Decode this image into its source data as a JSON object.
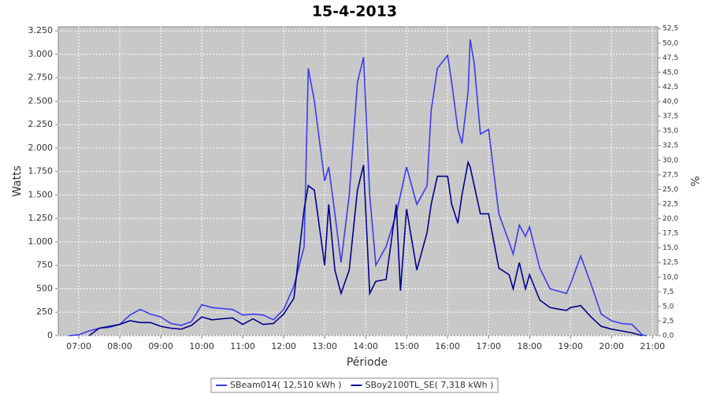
{
  "chart_data": {
    "type": "line",
    "title": "15-4-2013",
    "x_label": "Période",
    "y_label": "Watts",
    "y2_label": "%",
    "x": [
      6.75,
      7,
      7.25,
      7.5,
      7.75,
      8,
      8.25,
      8.5,
      8.75,
      9,
      9.25,
      9.5,
      9.75,
      10,
      10.25,
      10.5,
      10.75,
      11,
      11.25,
      11.5,
      11.75,
      12,
      12.25,
      12.5,
      12.6,
      12.75,
      13,
      13.1,
      13.25,
      13.4,
      13.6,
      13.8,
      13.95,
      14.1,
      14.25,
      14.5,
      14.75,
      14.85,
      15,
      15.25,
      15.5,
      15.6,
      15.75,
      16,
      16.1,
      16.25,
      16.35,
      16.5,
      16.55,
      16.65,
      16.8,
      17,
      17.25,
      17.5,
      17.6,
      17.75,
      17.9,
      18,
      18.25,
      18.5,
      18.75,
      18.9,
      19,
      19.25,
      19.5,
      19.75,
      20,
      20.25,
      20.5,
      20.75,
      20.85
    ],
    "series": [
      {
        "name": "SBeam014( 12,510 kWh )",
        "color": "#3b3bf0",
        "values": [
          0,
          10,
          50,
          80,
          90,
          120,
          220,
          280,
          230,
          200,
          130,
          110,
          150,
          330,
          300,
          290,
          280,
          220,
          230,
          220,
          170,
          280,
          530,
          950,
          2850,
          2500,
          1650,
          1800,
          1300,
          780,
          1500,
          2700,
          2970,
          1500,
          750,
          950,
          1300,
          1500,
          1800,
          1400,
          1600,
          2400,
          2850,
          2990,
          2700,
          2200,
          2050,
          2600,
          3160,
          2900,
          2150,
          2200,
          1300,
          1000,
          870,
          1180,
          1060,
          1160,
          720,
          500,
          470,
          450,
          550,
          850,
          550,
          230,
          160,
          130,
          120,
          10,
          0
        ]
      },
      {
        "name": "SBoy2100TL_SE( 7,318 kWh )",
        "color": "#00008b",
        "values": [
          null,
          null,
          0,
          80,
          100,
          120,
          160,
          140,
          140,
          100,
          80,
          70,
          110,
          200,
          170,
          180,
          190,
          120,
          180,
          120,
          130,
          230,
          400,
          1350,
          1600,
          1550,
          750,
          1400,
          700,
          450,
          700,
          1550,
          1820,
          450,
          580,
          600,
          1400,
          480,
          1350,
          700,
          1100,
          1400,
          1700,
          1700,
          1400,
          1200,
          1500,
          1850,
          1800,
          1600,
          1300,
          1300,
          720,
          650,
          500,
          780,
          500,
          650,
          380,
          300,
          280,
          270,
          300,
          320,
          200,
          100,
          70,
          50,
          30,
          0,
          null
        ]
      }
    ],
    "xlim": [
      6.5,
      21.13
    ],
    "xticks": [
      {
        "value": 7,
        "label": "07:00"
      },
      {
        "value": 8,
        "label": "08:00"
      },
      {
        "value": 9,
        "label": "09:00"
      },
      {
        "value": 10,
        "label": "10:00"
      },
      {
        "value": 11,
        "label": "11:00"
      },
      {
        "value": 12,
        "label": "12:00"
      },
      {
        "value": 13,
        "label": "13:00"
      },
      {
        "value": 14,
        "label": "14:00"
      },
      {
        "value": 15,
        "label": "15:00"
      },
      {
        "value": 16,
        "label": "16:00"
      },
      {
        "value": 17,
        "label": "17:00"
      },
      {
        "value": 18,
        "label": "18:00"
      },
      {
        "value": 19,
        "label": "19:00"
      },
      {
        "value": 20,
        "label": "20:00"
      },
      {
        "value": 21,
        "label": "21:00"
      }
    ],
    "ylim": [
      0,
      3294
    ],
    "yticks": [
      0,
      250,
      500,
      750,
      {
        "value": 1000,
        "label": "1.000"
      },
      {
        "value": 1250,
        "label": "1.250"
      },
      {
        "value": 1500,
        "label": "1.500"
      },
      {
        "value": 1750,
        "label": "1.750"
      },
      {
        "value": 2000,
        "label": "2.000"
      },
      {
        "value": 2250,
        "label": "2.250"
      },
      {
        "value": 2500,
        "label": "2.500"
      },
      {
        "value": 2750,
        "label": "2.750"
      },
      {
        "value": 3000,
        "label": "3.000"
      },
      {
        "value": 3250,
        "label": "3.250"
      }
    ],
    "y2lim": [
      0,
      52.8
    ],
    "y2ticks": [
      {
        "value": 0,
        "label": "0,0"
      },
      {
        "value": 2.5,
        "label": "2,5"
      },
      {
        "value": 5,
        "label": "5,0"
      },
      {
        "value": 7.5,
        "label": "7,5"
      },
      {
        "value": 10,
        "label": "10,0"
      },
      {
        "value": 12.5,
        "label": "12,5"
      },
      {
        "value": 15,
        "label": "15,0"
      },
      {
        "value": 17.5,
        "label": "17,5"
      },
      {
        "value": 20,
        "label": "20,0"
      },
      {
        "value": 22.5,
        "label": "22,5"
      },
      {
        "value": 25,
        "label": "25,0"
      },
      {
        "value": 27.5,
        "label": "27,5"
      },
      {
        "value": 30,
        "label": "30,0"
      },
      {
        "value": 32.5,
        "label": "32,5"
      },
      {
        "value": 35,
        "label": "35,0"
      },
      {
        "value": 37.5,
        "label": "37,5"
      },
      {
        "value": 40,
        "label": "40,0"
      },
      {
        "value": 42.5,
        "label": "42,5"
      },
      {
        "value": 45,
        "label": "45,0"
      },
      {
        "value": 47.5,
        "label": "47,5"
      },
      {
        "value": 50,
        "label": "50,0"
      },
      {
        "value": 52.5,
        "label": "52,5"
      }
    ],
    "grid": true,
    "legend": "bottom"
  }
}
